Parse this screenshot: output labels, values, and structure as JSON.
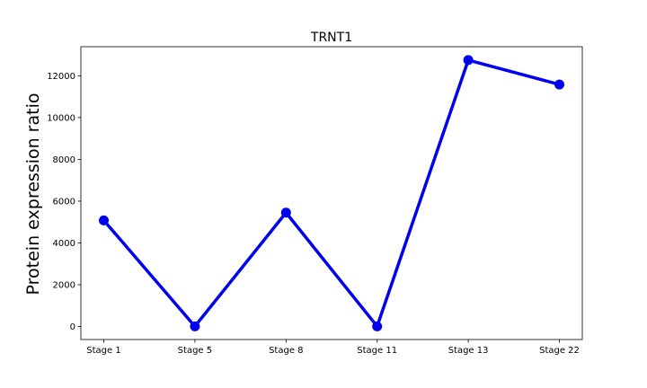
{
  "chart_data": {
    "type": "line",
    "title": "TRNT1",
    "xlabel": "",
    "ylabel": "Protein expression ratio",
    "categories": [
      "Stage 1",
      "Stage 5",
      "Stage 8",
      "Stage 11",
      "Stage 13",
      "Stage 22"
    ],
    "values": [
      5080,
      10,
      5450,
      10,
      12750,
      11580
    ],
    "ylim": [
      -620,
      13390
    ],
    "yticks": [
      0,
      2000,
      4000,
      6000,
      8000,
      10000,
      12000
    ],
    "ytick_labels": [
      "0",
      "2000",
      "4000",
      "6000",
      "8000",
      "10000",
      "12000"
    ],
    "grid": false,
    "legend": "none",
    "line_color": "#0000ee",
    "marker": "circle"
  }
}
